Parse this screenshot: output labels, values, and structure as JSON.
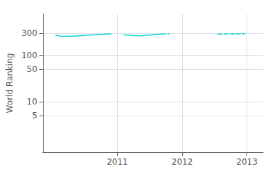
{
  "chart_data": {
    "type": "line",
    "ylabel": "World Ranking",
    "log": "y",
    "grid": true,
    "color": "#00d8cc",
    "xlim": [
      2009.85,
      2013.25
    ],
    "xticks": [
      2011,
      2012,
      2013
    ],
    "ylim": [
      0.8,
      800
    ],
    "yticks": [
      5,
      10,
      50,
      100,
      300
    ],
    "series": [
      {
        "x": [
          2010.05,
          2010.12,
          2010.25,
          2010.4,
          2010.55,
          2010.65,
          2010.75,
          2010.82,
          2010.9
        ],
        "values": [
          277,
          262,
          260,
          268,
          275,
          281,
          287,
          291,
          295
        ],
        "line_style": "solid"
      },
      {
        "x": [
          2011.1,
          2011.22,
          2011.35,
          2011.48,
          2011.58,
          2011.68
        ],
        "values": [
          280,
          271,
          268,
          276,
          284,
          291
        ],
        "line_style": "solid"
      },
      {
        "x": [
          2011.68,
          2011.8
        ],
        "values": [
          291,
          296
        ],
        "line_style": "dashed"
      },
      {
        "x": [
          2012.55,
          2012.68,
          2012.78,
          2012.88,
          2012.97
        ],
        "values": [
          291,
          293,
          294,
          295,
          296
        ],
        "line_style": "dashed"
      }
    ]
  }
}
